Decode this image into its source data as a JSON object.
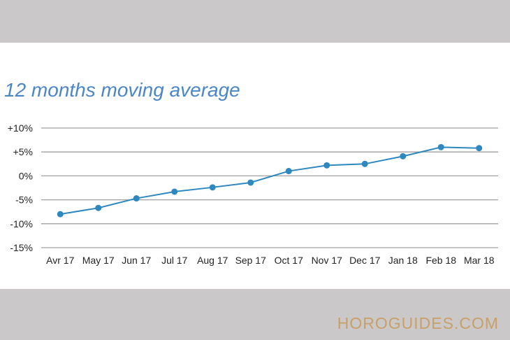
{
  "footer": {
    "brand": "HOROGUIDES.COM"
  },
  "chart_data": {
    "type": "line",
    "title": "12 months moving average",
    "categories": [
      "Avr 17",
      "May 17",
      "Jun 17",
      "Jul 17",
      "Aug 17",
      "Sep 17",
      "Oct 17",
      "Nov 17",
      "Dec 17",
      "Jan 18",
      "Feb 18",
      "Mar 18"
    ],
    "series": [
      {
        "values": [
          -8.0,
          -6.7,
          -4.7,
          -3.3,
          -2.4,
          -1.4,
          1.0,
          2.2,
          2.5,
          4.1,
          6.0,
          5.8
        ]
      }
    ],
    "y_ticks": [
      10,
      5,
      0,
      -5,
      -10,
      -15
    ],
    "y_tick_labels": [
      "+10%",
      "+5%",
      "0%",
      "-5%",
      "-10%",
      "-15%"
    ],
    "ylim": [
      -15,
      10
    ],
    "grid": true,
    "legend": false,
    "colors": {
      "line": "#2e88c0",
      "grid": "#a0a0a0",
      "title": "#4a86c8",
      "band": "#cac8c8",
      "brand": "#c8a068"
    }
  }
}
